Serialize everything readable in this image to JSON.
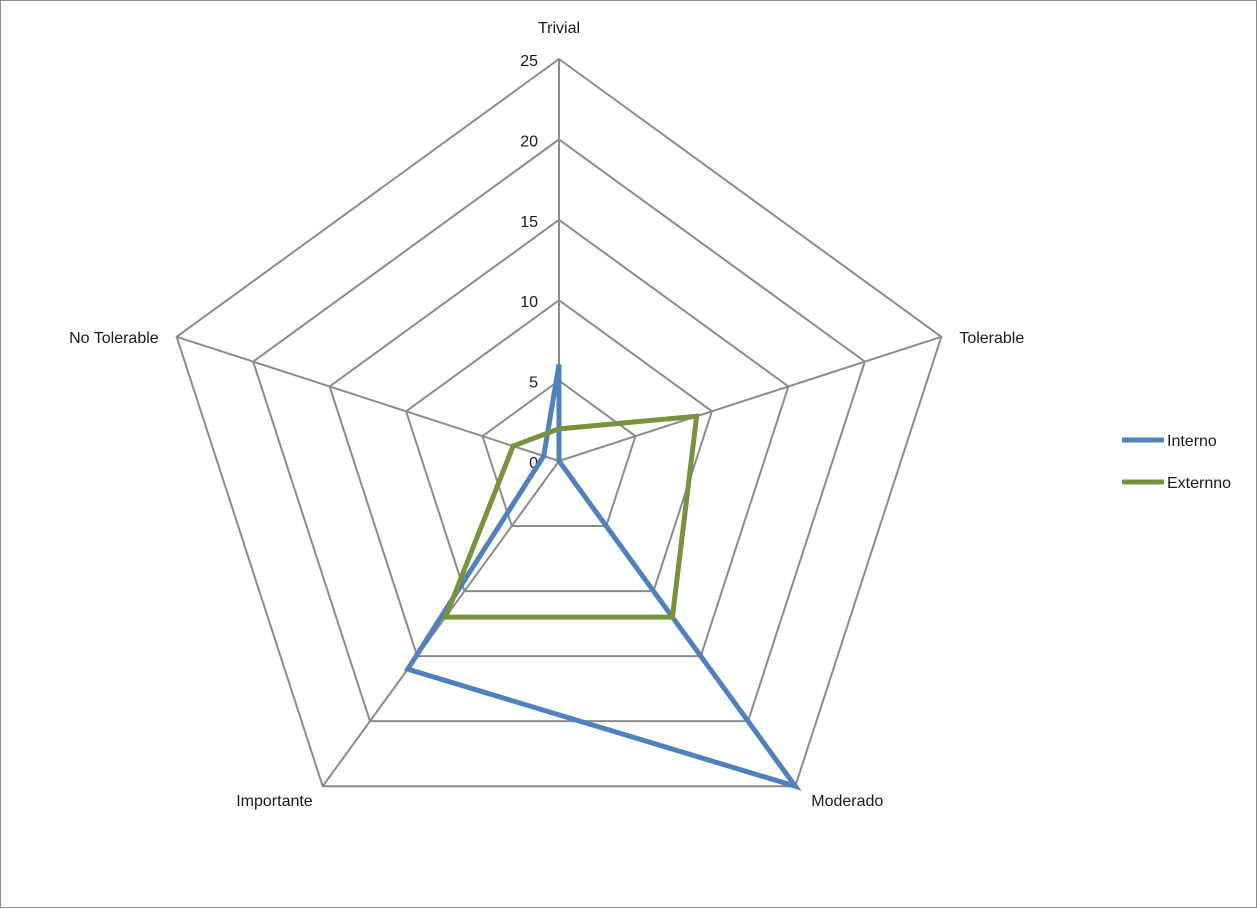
{
  "chart_data": {
    "type": "radar",
    "categories": [
      "Trivial",
      "Tolerable",
      "Moderado",
      "Importante",
      "No Tolerable"
    ],
    "rlim": [
      0,
      25
    ],
    "ticks": [
      0,
      5,
      10,
      15,
      20,
      25
    ],
    "grid": true,
    "legend_position": "right",
    "series": [
      {
        "name": "Interno",
        "values": [
          6,
          0,
          25,
          16,
          1
        ],
        "color": "#4f81bd"
      },
      {
        "name": "Externno",
        "values": [
          2,
          9,
          12,
          12,
          3
        ],
        "color": "#77933c"
      }
    ]
  }
}
